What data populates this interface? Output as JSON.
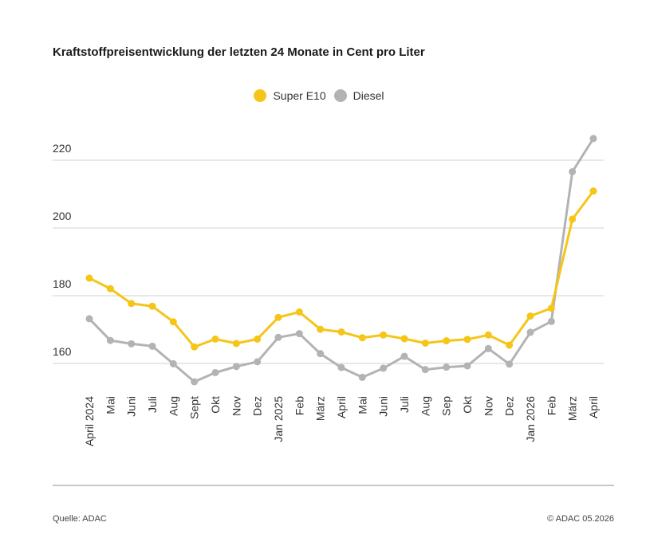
{
  "title": "Kraftstoffpreisentwicklung der letzten 24 Monate in Cent pro Liter",
  "legend": [
    {
      "label": "Super E10",
      "color": "#f5c518"
    },
    {
      "label": "Diesel",
      "color": "#b3b3b3"
    }
  ],
  "footer": {
    "source": "Quelle: ADAC",
    "copyright": "© ADAC 05.2026"
  },
  "chart_data": {
    "type": "line",
    "title": "Kraftstoffpreisentwicklung der letzten 24 Monate in Cent pro Liter",
    "xlabel": "",
    "ylabel": "",
    "ylim": [
      150,
      228
    ],
    "yticks": [
      160,
      180,
      200,
      220
    ],
    "grid": true,
    "legend_position": "top",
    "categories": [
      "April 2024",
      "Mai",
      "Juni",
      "Juli",
      "Aug",
      "Sept",
      "Okt",
      "Nov",
      "Dez",
      "Jan 2025",
      "Feb",
      "März",
      "April",
      "Mai",
      "Juni",
      "Juli",
      "Aug",
      "Sep",
      "Okt",
      "Nov",
      "Dez",
      "Jan 2026",
      "Feb",
      "März",
      "April"
    ],
    "series": [
      {
        "name": "Super E10",
        "color": "#f5c518",
        "values": [
          185.2,
          182.1,
          177.7,
          176.9,
          172.3,
          164.9,
          167.2,
          165.9,
          167.2,
          173.6,
          175.2,
          170.1,
          169.3,
          167.6,
          168.4,
          167.3,
          166.0,
          166.7,
          167.1,
          168.4,
          165.4,
          174.0,
          176.3,
          202.6,
          210.9
        ]
      },
      {
        "name": "Diesel",
        "color": "#b3b3b3",
        "values": [
          173.2,
          166.8,
          165.8,
          165.1,
          159.9,
          154.6,
          157.3,
          159.1,
          160.5,
          167.7,
          168.8,
          162.9,
          158.8,
          155.9,
          158.6,
          162.1,
          158.2,
          158.9,
          159.3,
          164.4,
          159.8,
          169.2,
          172.4,
          216.6,
          226.4
        ]
      }
    ]
  }
}
